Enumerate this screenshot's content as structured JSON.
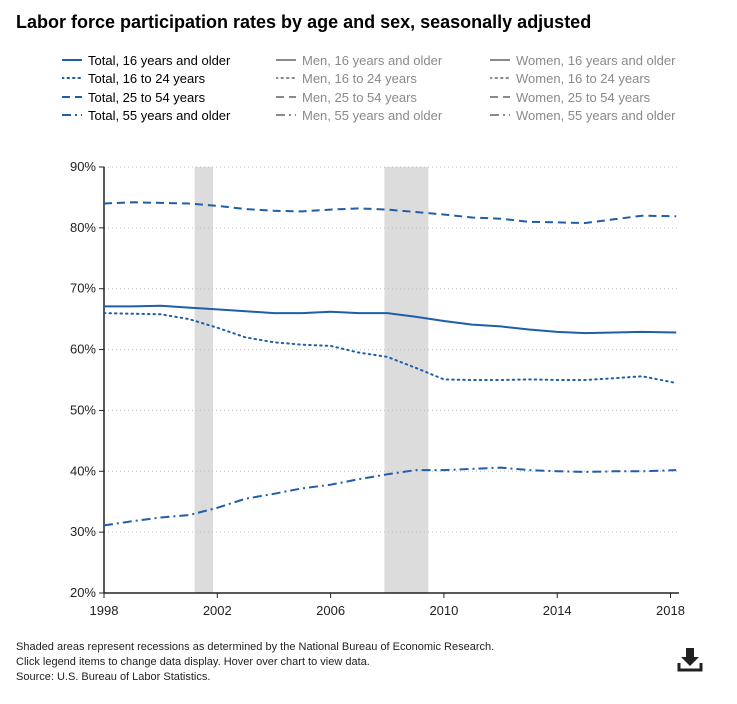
{
  "title": "Labor force participation rates by age and sex, seasonally adjusted",
  "legend": {
    "items": [
      {
        "label": "Total, 16 years and older",
        "dash": "solid",
        "active": true
      },
      {
        "label": "Total, 16 to 24 years",
        "dash": "dotted",
        "active": true
      },
      {
        "label": "Total, 25 to 54 years",
        "dash": "dashed",
        "active": true
      },
      {
        "label": "Total, 55 years and older",
        "dash": "dashdot",
        "active": true
      },
      {
        "label": "Men, 16 years and older",
        "dash": "solid",
        "active": false
      },
      {
        "label": "Men, 16 to 24 years",
        "dash": "dotted",
        "active": false
      },
      {
        "label": "Men, 25 to 54 years",
        "dash": "dashed",
        "active": false
      },
      {
        "label": "Men, 55 years and older",
        "dash": "dashdot",
        "active": false
      },
      {
        "label": "Women, 16 years and older",
        "dash": "solid",
        "active": false
      },
      {
        "label": "Women, 16 to 24 years",
        "dash": "dotted",
        "active": false
      },
      {
        "label": "Women, 25 to 54 years",
        "dash": "dashed",
        "active": false
      },
      {
        "label": "Women, 55 years and older",
        "dash": "dashdot",
        "active": false
      }
    ]
  },
  "colors": {
    "series": "#1f5ea8",
    "inactive": "#8a8a8a",
    "recession": "#dcdcdc",
    "grid": "#bbbbbb",
    "axis": "#222222"
  },
  "chart_data": {
    "type": "line",
    "title": "Labor force participation rates by age and sex, seasonally adjusted",
    "xlabel": "",
    "ylabel": "",
    "xlim": [
      1998.0,
      2018.3
    ],
    "ylim": [
      20,
      90
    ],
    "y_ticks": [
      20,
      30,
      40,
      50,
      60,
      70,
      80,
      90
    ],
    "y_tick_labels": [
      "20%",
      "30%",
      "40%",
      "50%",
      "60%",
      "70%",
      "80%",
      "90%"
    ],
    "x_ticks": [
      1998,
      2002,
      2006,
      2010,
      2014,
      2018
    ],
    "x_tick_labels": [
      "1998",
      "2002",
      "2006",
      "2010",
      "2014",
      "2018"
    ],
    "grid": true,
    "recessions": [
      [
        2001.2,
        2001.85
      ],
      [
        2007.9,
        2009.45
      ]
    ],
    "series": [
      {
        "name": "Total, 16 years and older",
        "dash": "solid",
        "x": [
          1998,
          1999,
          2000,
          2001,
          2002,
          2003,
          2004,
          2005,
          2006,
          2007,
          2008,
          2009,
          2010,
          2011,
          2012,
          2013,
          2014,
          2015,
          2016,
          2017,
          2018.2
        ],
        "y": [
          67.1,
          67.1,
          67.2,
          66.9,
          66.6,
          66.3,
          66.0,
          66.0,
          66.2,
          66.0,
          66.0,
          65.4,
          64.7,
          64.1,
          63.8,
          63.3,
          62.9,
          62.7,
          62.8,
          62.9,
          62.8
        ]
      },
      {
        "name": "Total, 16 to 24 years",
        "dash": "dotted",
        "x": [
          1998,
          1999,
          2000,
          2001,
          2002,
          2003,
          2004,
          2005,
          2006,
          2007,
          2008,
          2009,
          2010,
          2011,
          2012,
          2013,
          2014,
          2015,
          2016,
          2017,
          2018.2
        ],
        "y": [
          66.0,
          65.9,
          65.8,
          65.0,
          63.6,
          62.0,
          61.2,
          60.8,
          60.6,
          59.5,
          58.8,
          57.0,
          55.1,
          55.0,
          55.0,
          55.1,
          55.0,
          55.0,
          55.3,
          55.6,
          54.5
        ]
      },
      {
        "name": "Total, 25 to 54 years",
        "dash": "dashed",
        "x": [
          1998,
          1999,
          2000,
          2001,
          2002,
          2003,
          2004,
          2005,
          2006,
          2007,
          2008,
          2009,
          2010,
          2011,
          2012,
          2013,
          2014,
          2015,
          2016,
          2017,
          2018.2
        ],
        "y": [
          84.0,
          84.2,
          84.1,
          84.0,
          83.6,
          83.1,
          82.8,
          82.7,
          83.0,
          83.2,
          83.0,
          82.6,
          82.2,
          81.7,
          81.5,
          81.0,
          80.9,
          80.8,
          81.4,
          82.0,
          81.9
        ]
      },
      {
        "name": "Total, 55 years and older",
        "dash": "dashdot",
        "x": [
          1998,
          1999,
          2000,
          2001,
          2002,
          2003,
          2004,
          2005,
          2006,
          2007,
          2008,
          2009,
          2010,
          2011,
          2012,
          2013,
          2014,
          2015,
          2016,
          2017,
          2018.2
        ],
        "y": [
          31.1,
          31.8,
          32.4,
          32.8,
          34.0,
          35.5,
          36.3,
          37.2,
          37.8,
          38.7,
          39.5,
          40.2,
          40.2,
          40.4,
          40.6,
          40.2,
          40.0,
          39.9,
          40.0,
          40.0,
          40.2
        ]
      }
    ]
  },
  "notes": [
    "Shaded areas represent recessions as determined by the National Bureau of Economic Research.",
    "Click legend items to change data display. Hover over chart to view data.",
    "Source: U.S. Bureau of Labor Statistics."
  ],
  "download": {
    "icon": "download-icon"
  }
}
